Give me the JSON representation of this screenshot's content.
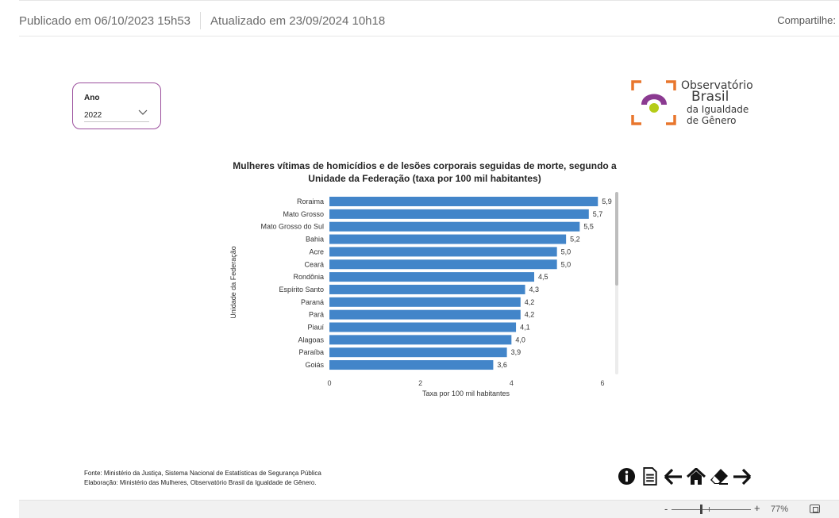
{
  "header": {
    "published": "Publicado em 06/10/2023 15h53",
    "updated": "Atualizado em 23/09/2024 10h18",
    "share_label": "Compartilhe:"
  },
  "slicer": {
    "label": "Ano",
    "value": "2022"
  },
  "logo": {
    "line1": "Observatório",
    "line2": "Brasil",
    "line3": "da Igualdade",
    "line4": "de Gênero"
  },
  "chart_data": {
    "type": "bar",
    "orientation": "horizontal",
    "title": "Mulheres vítimas de homicídios e de lesões corporais seguidas de morte, segundo a Unidade da Federação (taxa por 100 mil habitantes)",
    "xlabel": "Taxa por 100 mil habitantes",
    "ylabel": "Unidade da Federação",
    "xlim": [
      0,
      6
    ],
    "xticks": [
      0,
      2,
      4,
      6
    ],
    "categories": [
      "Roraima",
      "Mato Grosso",
      "Mato Grosso do Sul",
      "Bahia",
      "Acre",
      "Ceará",
      "Rondônia",
      "Espírito Santo",
      "Paraná",
      "Pará",
      "Piauí",
      "Alagoas",
      "Paraíba",
      "Goiás"
    ],
    "values": [
      5.9,
      5.7,
      5.5,
      5.2,
      5.0,
      5.0,
      4.5,
      4.3,
      4.2,
      4.2,
      4.1,
      4.0,
      3.9,
      3.6
    ],
    "value_labels": [
      "5,9",
      "5,7",
      "5,5",
      "5,2",
      "5,0",
      "5,0",
      "4,5",
      "4,3",
      "4,2",
      "4,2",
      "4,1",
      "4,0",
      "3,9",
      "3,6"
    ],
    "bar_color": "#4285c9",
    "grid": false
  },
  "footer": {
    "source_line1": "Fonte: Ministério da Justiça, Sistema Nacional de Estatísticas de Segurança Pública",
    "source_line2": "Elaboração: Ministério das Mulheres, Observatório Brasil da Igualdade de Gênero."
  },
  "nav_icons": [
    "info-icon",
    "document-icon",
    "arrow-left-icon",
    "home-icon",
    "eraser-icon",
    "arrow-right-icon"
  ],
  "statusbar": {
    "zoom_minus": "-",
    "zoom_plus": "+",
    "zoom_value": "77%"
  },
  "colors": {
    "accent": "#9b4f9d",
    "bar": "#4285c9",
    "logo_orange": "#e8762d",
    "logo_purple": "#8b3a91",
    "logo_green": "#b5cc18"
  }
}
